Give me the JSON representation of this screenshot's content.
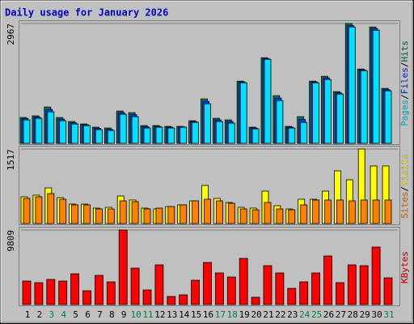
{
  "title": "Daily usage for January 2026",
  "legend_separator": "/",
  "chart_data": [
    {
      "type": "bar",
      "ylim": [
        0,
        2967
      ],
      "yticks": [
        2967
      ],
      "grid": true,
      "series": [
        {
          "name": "Hits",
          "color": "#008060",
          "values": [
            640,
            680,
            900,
            640,
            540,
            480,
            400,
            380,
            800,
            760,
            440,
            440,
            420,
            420,
            560,
            1100,
            620,
            580,
            1540,
            400,
            2120,
            1180,
            420,
            660,
            1540,
            1660,
            1280,
            2967,
            1840,
            2880,
            1360
          ]
        },
        {
          "name": "Files",
          "color": "#0040ff",
          "values": [
            610,
            650,
            840,
            600,
            510,
            460,
            370,
            350,
            760,
            710,
            410,
            420,
            400,
            410,
            540,
            1040,
            580,
            540,
            1520,
            380,
            2100,
            1120,
            400,
            590,
            1520,
            1620,
            1250,
            2920,
            1820,
            2840,
            1330
          ]
        },
        {
          "name": "Pages",
          "color": "#00e0ff",
          "values": [
            580,
            620,
            780,
            560,
            480,
            440,
            340,
            320,
            720,
            660,
            380,
            400,
            380,
            400,
            520,
            980,
            540,
            500,
            1500,
            360,
            2080,
            1060,
            380,
            520,
            1500,
            1580,
            1220,
            2880,
            1800,
            2800,
            1300
          ]
        }
      ]
    },
    {
      "type": "bar",
      "ylim": [
        0,
        1517
      ],
      "yticks": [
        1517
      ],
      "grid": true,
      "series": [
        {
          "name": "Visits",
          "color": "#ffff00",
          "values": [
            545,
            578,
            726,
            528,
            396,
            396,
            314,
            330,
            561,
            479,
            314,
            297,
            347,
            380,
            462,
            776,
            512,
            429,
            330,
            314,
            660,
            363,
            297,
            495,
            495,
            660,
            1073,
            891,
            1517,
            1172,
            1172
          ]
        },
        {
          "name": "Sites",
          "color": "#ff8000",
          "values": [
            512,
            545,
            610,
            495,
            380,
            380,
            297,
            297,
            462,
            446,
            297,
            314,
            347,
            380,
            462,
            495,
            462,
            413,
            297,
            280,
            429,
            297,
            280,
            380,
            479,
            479,
            479,
            462,
            479,
            479,
            479
          ]
        }
      ]
    },
    {
      "type": "bar",
      "ylim": [
        0,
        9809
      ],
      "yticks": [
        9809
      ],
      "grid": true,
      "categories": [
        "1",
        "2",
        "3",
        "4",
        "5",
        "6",
        "7",
        "8",
        "9",
        "10",
        "11",
        "12",
        "13",
        "14",
        "15",
        "16",
        "17",
        "18",
        "19",
        "20",
        "21",
        "22",
        "23",
        "24",
        "25",
        "26",
        "27",
        "28",
        "29",
        "30",
        "31"
      ],
      "category_colors": [
        "#000000",
        "#000000",
        "#008040",
        "#008040",
        "#000000",
        "#000000",
        "#000000",
        "#000000",
        "#000000",
        "#008040",
        "#008040",
        "#000000",
        "#000000",
        "#000000",
        "#000000",
        "#000000",
        "#008040",
        "#008040",
        "#000000",
        "#000000",
        "#000000",
        "#000000",
        "#000000",
        "#008040",
        "#008040",
        "#000000",
        "#000000",
        "#000000",
        "#000000",
        "#000000",
        "#008040"
      ],
      "series": [
        {
          "name": "KBytes",
          "color": "#ff0000",
          "values": [
            3092,
            2878,
            3305,
            3092,
            4051,
            1812,
            3838,
            2985,
            9809,
            4797,
            1919,
            5224,
            1066,
            1279,
            3198,
            5543,
            4158,
            3625,
            6076,
            959,
            5117,
            4158,
            2132,
            2985,
            4158,
            6396,
            2878,
            5224,
            5117,
            7569,
            3518
          ]
        }
      ]
    }
  ]
}
